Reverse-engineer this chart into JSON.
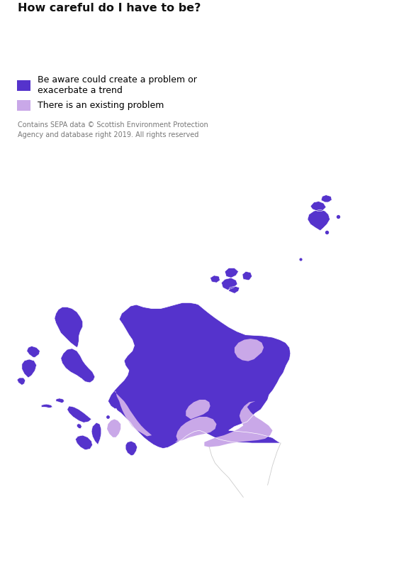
{
  "title": "How careful do I have to be?",
  "legend_label_1": "Be aware could create a problem or\nexacerbate a trend",
  "legend_label_2": "There is an existing problem",
  "attribution": "Contains SEPA data © Scottish Environment Protection\nAgency and database right 2019. All rights reserved",
  "background_color": "#ffffff",
  "color_aware": "#5533cc",
  "color_problem": "#c9a8e8",
  "color_border": "#cccccc",
  "title_fontsize": 11.5,
  "legend_fontsize": 9,
  "attribution_fontsize": 7,
  "figsize": [
    5.63,
    8.0
  ],
  "dpi": 100,
  "map_lon_min": -7.8,
  "map_lon_max": 0.4,
  "map_lat_min": 54.55,
  "map_lat_max": 61.05
}
